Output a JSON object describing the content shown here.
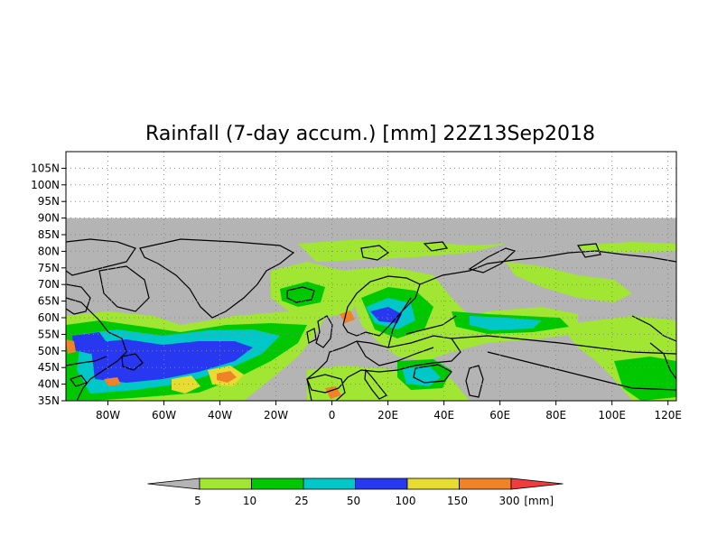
{
  "title": "Rainfall (7-day accum.) [mm] 22Z13Sep2018",
  "map": {
    "lon_range": [
      -95,
      123
    ],
    "lat_range": [
      35,
      110
    ],
    "data_lat_max": 90,
    "lat_ticks": [
      "105N",
      "100N",
      "95N",
      "90N",
      "85N",
      "80N",
      "75N",
      "70N",
      "65N",
      "60N",
      "55N",
      "50N",
      "45N",
      "40N",
      "35N"
    ],
    "lat_tick_values": [
      105,
      100,
      95,
      90,
      85,
      80,
      75,
      70,
      65,
      60,
      55,
      50,
      45,
      40,
      35
    ],
    "lon_ticks": [
      "80W",
      "60W",
      "40W",
      "20W",
      "0",
      "20E",
      "40E",
      "60E",
      "80E",
      "100E",
      "120E"
    ],
    "lon_tick_values": [
      -80,
      -60,
      -40,
      -20,
      0,
      20,
      40,
      60,
      80,
      100,
      120
    ],
    "background_color": "#b4b4b4",
    "coastline_color": "#000000"
  },
  "colorbar": {
    "labels": [
      "5",
      "10",
      "25",
      "50",
      "100",
      "150",
      "300"
    ],
    "unit": "[mm]",
    "colors": [
      "#b4b4b4",
      "#a0e632",
      "#00c800",
      "#00c8c8",
      "#2838f0",
      "#e6dc32",
      "#f08228",
      "#f03c3c"
    ]
  }
}
